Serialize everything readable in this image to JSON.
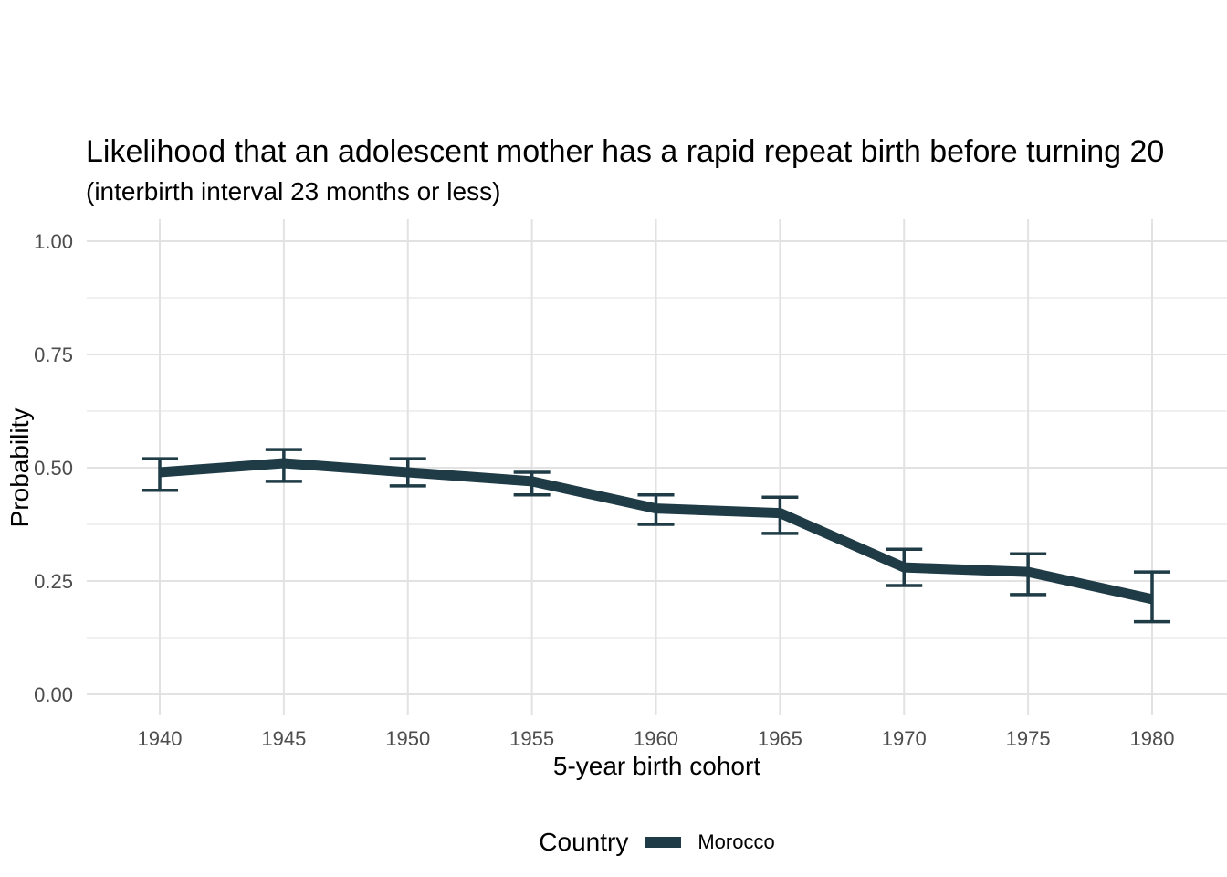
{
  "chart_data": {
    "type": "line",
    "title": "Likelihood that an adolescent mother has a rapid repeat birth before turning 20",
    "subtitle": "(interbirth interval 23 months or less)",
    "xlabel": "5-year birth cohort",
    "ylabel": "Probability",
    "x": [
      1940,
      1945,
      1950,
      1955,
      1960,
      1965,
      1970,
      1975,
      1980
    ],
    "xtick_labels": [
      "1940",
      "1945",
      "1950",
      "1955",
      "1960",
      "1965",
      "1970",
      "1975",
      "1980"
    ],
    "ylim": [
      0,
      1
    ],
    "yticks": [
      0,
      0.25,
      0.5,
      0.75,
      1
    ],
    "ytick_labels": [
      "0.00",
      "0.25",
      "0.50",
      "0.75",
      "1.00"
    ],
    "y_minor_gridlines": [
      0.125,
      0.375,
      0.625,
      0.875
    ],
    "grid": true,
    "series": [
      {
        "name": "Morocco",
        "values": [
          0.49,
          0.51,
          0.49,
          0.47,
          0.41,
          0.4,
          0.28,
          0.27,
          0.21
        ],
        "ci_lower": [
          0.45,
          0.47,
          0.46,
          0.44,
          0.375,
          0.355,
          0.24,
          0.22,
          0.16
        ],
        "ci_upper": [
          0.52,
          0.54,
          0.52,
          0.49,
          0.44,
          0.435,
          0.32,
          0.31,
          0.27
        ]
      }
    ],
    "legend": {
      "title": "Country",
      "position": "bottom",
      "entries": [
        {
          "label": "Morocco",
          "color": "#1e3b46"
        }
      ]
    },
    "colors": {
      "line": "#1e3b46",
      "grid_major": "#e2e2e2",
      "grid_minor": "#ececec",
      "axis_text": "#4d4d4d",
      "text": "#000000",
      "background": "#ffffff"
    }
  }
}
